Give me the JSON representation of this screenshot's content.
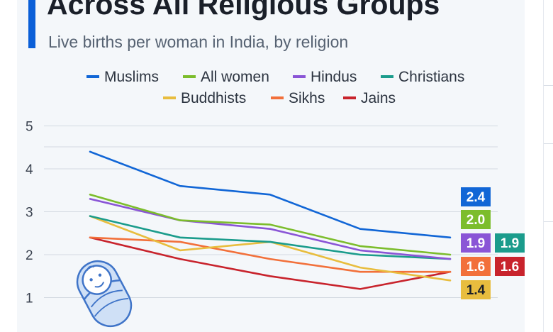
{
  "header": {
    "title": "Across All Religious Groups",
    "subtitle": "Live births per woman in India, by religion"
  },
  "chart_data": {
    "type": "line",
    "title": "Across All Religious Groups",
    "subtitle": "Live births per woman in India, by religion",
    "xlabel": "",
    "ylabel": "",
    "ylim": [
      0.5,
      5
    ],
    "yticks": [
      1,
      2,
      3,
      4,
      5
    ],
    "grid": true,
    "legend_position": "top",
    "series": [
      {
        "name": "Muslims",
        "color": "#1166d6",
        "values": [
          4.4,
          3.6,
          3.4,
          2.6,
          2.4
        ],
        "end_label": "2.4"
      },
      {
        "name": "All women",
        "color": "#7cbd2c",
        "values": [
          3.4,
          2.8,
          2.7,
          2.2,
          2.0
        ],
        "end_label": "2.0"
      },
      {
        "name": "Hindus",
        "color": "#8a55d6",
        "values": [
          3.3,
          2.8,
          2.6,
          2.1,
          1.9
        ],
        "end_label": "1.9"
      },
      {
        "name": "Christians",
        "color": "#1b9c8c",
        "values": [
          2.9,
          2.4,
          2.3,
          2.0,
          1.9
        ],
        "end_label": "1.9"
      },
      {
        "name": "Buddhists",
        "color": "#e8bd3e",
        "values": [
          2.9,
          2.1,
          2.3,
          1.7,
          1.4
        ],
        "end_label": "1.4"
      },
      {
        "name": "Sikhs",
        "color": "#f2703a",
        "values": [
          2.4,
          2.3,
          1.9,
          1.6,
          1.6
        ],
        "end_label": "1.6"
      },
      {
        "name": "Jains",
        "color": "#c8232c",
        "values": [
          2.4,
          1.9,
          1.5,
          1.2,
          1.6
        ],
        "end_label": "1.6"
      }
    ]
  }
}
